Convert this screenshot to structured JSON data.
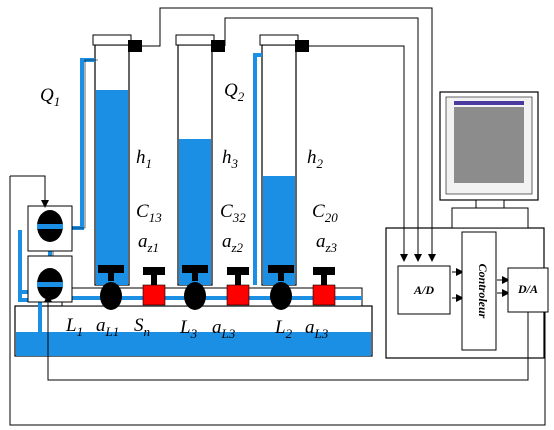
{
  "labels": {
    "q1": {
      "main": "Q",
      "sub": "1"
    },
    "q2": {
      "main": "Q",
      "sub": "2"
    },
    "h1": {
      "main": "h",
      "sub": "1"
    },
    "h3": {
      "main": "h",
      "sub": "3"
    },
    "h2": {
      "main": "h",
      "sub": "2"
    },
    "c13": {
      "main": "C",
      "sub": "13"
    },
    "c32": {
      "main": "C",
      "sub": "32"
    },
    "c20": {
      "main": "C",
      "sub": "20"
    },
    "az1": {
      "main": "a",
      "sub": "z1"
    },
    "az2": {
      "main": "a",
      "sub": "z2"
    },
    "az3": {
      "main": "a",
      "sub": "z3"
    },
    "l1": {
      "main": "L",
      "sub": "1"
    },
    "al1": {
      "main": "a",
      "sub": "L1"
    },
    "sn": {
      "main": "S",
      "sub": "n"
    },
    "l3": {
      "main": "L",
      "sub": "3"
    },
    "al3a": {
      "main": "a",
      "sub": "L3"
    },
    "l2": {
      "main": "L",
      "sub": "2"
    },
    "al3b": {
      "main": "a",
      "sub": "L3"
    }
  },
  "boxes": {
    "ad": "A/D",
    "controller": "Controleur",
    "da": "D/A"
  },
  "tanks": {
    "tank1_level": 0.77,
    "tank3_level": 0.56,
    "tank2_level": 0.41
  },
  "colors": {
    "water": "#1a8fe3",
    "valve_red": "#ff0000",
    "line": "#000000",
    "monitor_screen": "#8c8c8c"
  }
}
